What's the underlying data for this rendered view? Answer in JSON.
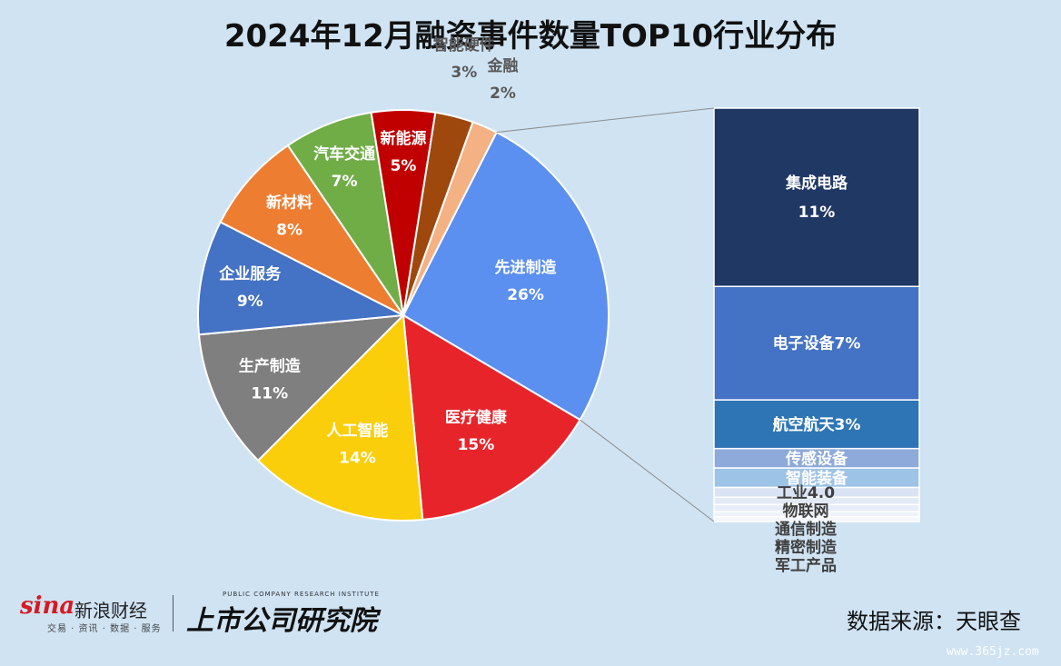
{
  "title": "2024年12月融资事件数量TOP10行业分布",
  "source": "数据来源：天眼查",
  "watermark": "www.365jz.com",
  "logos": {
    "sina_logo": "sina",
    "sina_cn": "新浪财经",
    "sina_sub": "交易 · 资讯 · 数据 · 服务",
    "institute_sub": "PUBLIC COMPANY RESEARCH INSTITUTE",
    "institute_main": "上市公司研究院"
  },
  "chart_data": [
    {
      "type": "pie",
      "slices": [
        {
          "label": "先进制造",
          "value": 26,
          "display": "26%",
          "color": "#5b8ff0"
        },
        {
          "label": "医疗健康",
          "value": 15,
          "display": "15%",
          "color": "#e8242b"
        },
        {
          "label": "人工智能",
          "value": 14,
          "display": "14%",
          "color": "#fbce0b"
        },
        {
          "label": "生产制造",
          "value": 11,
          "display": "11%",
          "color": "#7f7f7f"
        },
        {
          "label": "企业服务",
          "value": 9,
          "display": "9%",
          "color": "#4472c4"
        },
        {
          "label": "新材料",
          "value": 8,
          "display": "8%",
          "color": "#ed7d31"
        },
        {
          "label": "汽车交通",
          "value": 7,
          "display": "7%",
          "color": "#70ad47"
        },
        {
          "label": "新能源",
          "value": 5,
          "display": "5%",
          "color": "#c00000"
        },
        {
          "label": "智能硬件",
          "value": 3,
          "display": "3%",
          "color": "#9e480e"
        },
        {
          "label": "金融",
          "value": 2,
          "display": "2%",
          "color": "#f4b183"
        }
      ]
    },
    {
      "type": "bar",
      "stacked": true,
      "breakdown_of": "先进制造",
      "segments": [
        {
          "label": "集成电路",
          "value": 11,
          "display": "11%",
          "color": "#203864"
        },
        {
          "label": "电子设备",
          "value": 7,
          "display": "7%",
          "color": "#4472c4"
        },
        {
          "label": "航空航天",
          "value": 3,
          "display": "3%",
          "color": "#2e75b6"
        },
        {
          "label": "传感设备",
          "value": 1.2,
          "display": "",
          "color": "#8eaadb"
        },
        {
          "label": "智能装备",
          "value": 1.2,
          "display": "",
          "color": "#9dc3e6"
        },
        {
          "label": "工业4.0",
          "value": 0.6,
          "display": "",
          "color": "#dae3f3"
        },
        {
          "label": "物联网",
          "value": 0.45,
          "display": "",
          "color": "#e2eaf5"
        },
        {
          "label": "通信制造",
          "value": 0.45,
          "display": "",
          "color": "#e8eef7"
        },
        {
          "label": "精密制造",
          "value": 0.3,
          "display": "",
          "color": "#eef3f9"
        },
        {
          "label": "军工产品",
          "value": 0.3,
          "display": "",
          "color": "#f3f6fb"
        }
      ]
    }
  ]
}
